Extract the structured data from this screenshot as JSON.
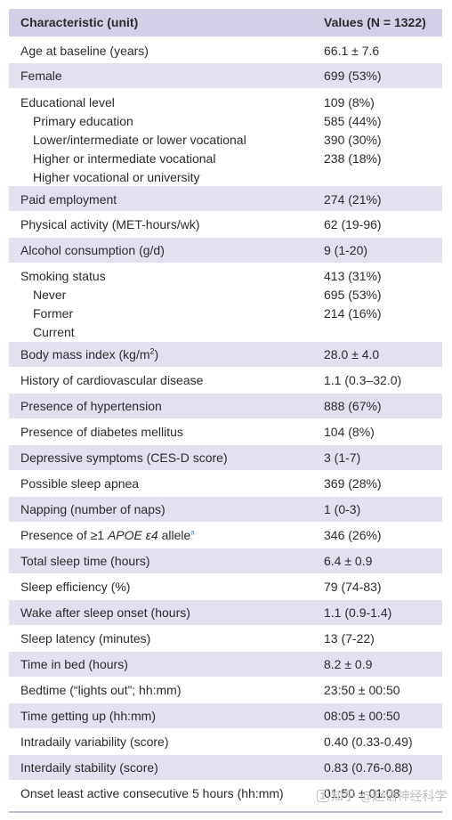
{
  "header": {
    "characteristic": "Characteristic (unit)",
    "values": "Values (N = 1322)"
  },
  "rows": {
    "age": {
      "label": "Age at baseline (years)",
      "value": "66.1 ± 7.6"
    },
    "female": {
      "label": "Female",
      "value": "699 (53%)"
    },
    "education": {
      "label": "Educational level",
      "subs": [
        "Primary education",
        "Lower/intermediate or lower vocational",
        "Higher or intermediate vocational",
        "Higher vocational or university"
      ],
      "values": [
        "109 (8%)",
        "585 (44%)",
        "390 (30%)",
        "238 (18%)"
      ]
    },
    "paid": {
      "label": "Paid employment",
      "value": "274 (21%)"
    },
    "physical": {
      "label": "Physical activity (MET-hours/wk)",
      "value": "62 (19-96)"
    },
    "alcohol": {
      "label": "Alcohol consumption (g/d)",
      "value": "9 (1-20)"
    },
    "smoking": {
      "label": "Smoking status",
      "subs": [
        "Never",
        "Former",
        "Current"
      ],
      "values": [
        "413 (31%)",
        "695 (53%)",
        "214 (16%)"
      ]
    },
    "bmi": {
      "label": "Body mass index (kg/m",
      "label_sup": "2",
      "label_end": ")",
      "value": "28.0 ± 4.0"
    },
    "cardio": {
      "label": "History of cardiovascular disease",
      "value": "1.1 (0.3–32.0)"
    },
    "hypertension": {
      "label": "Presence of hypertension",
      "value": "888 (67%)"
    },
    "diabetes": {
      "label": "Presence of diabetes mellitus",
      "value": "104 (8%)"
    },
    "depressive": {
      "label": "Depressive symptoms (CES-D score)",
      "value": "3 (1-7)"
    },
    "apnea": {
      "label": "Possible sleep apnea",
      "value": "369 (28%)"
    },
    "napping": {
      "label": "Napping (number of naps)",
      "value": "1 (0-3)"
    },
    "apoe": {
      "label_pre": "Presence of ≥1 ",
      "label_ital": "APOE ε4",
      "label_post": " allele",
      "label_sup": "a",
      "value": "346 (26%)"
    },
    "tst": {
      "label": "Total sleep time (hours)",
      "value": "6.4 ± 0.9"
    },
    "efficiency": {
      "label": "Sleep efficiency (%)",
      "value": "79 (74-83)"
    },
    "waso": {
      "label": "Wake after sleep onset (hours)",
      "value": "1.1 (0.9-1.4)"
    },
    "latency": {
      "label": "Sleep latency (minutes)",
      "value": "13 (7-22)"
    },
    "tib": {
      "label": "Time in bed (hours)",
      "value": "8.2 ± 0.9"
    },
    "bedtime": {
      "label": "Bedtime (“lights out”; hh:mm)",
      "value": "23:50 ± 00:50"
    },
    "getup": {
      "label": "Time getting up (hh:mm)",
      "value": "08:05 ± 00:50"
    },
    "iv": {
      "label": "Intradaily variability (score)",
      "value": "0.40 (0.33-0.49)"
    },
    "is": {
      "label": "Interdaily stability (score)",
      "value": "0.83 (0.76-0.88)"
    },
    "l5": {
      "label": "Onset least active consecutive 5 hours (hh:mm)",
      "value": "01:50 ± 01:08"
    }
  },
  "watermark": "知乎 @赵语神经科学"
}
